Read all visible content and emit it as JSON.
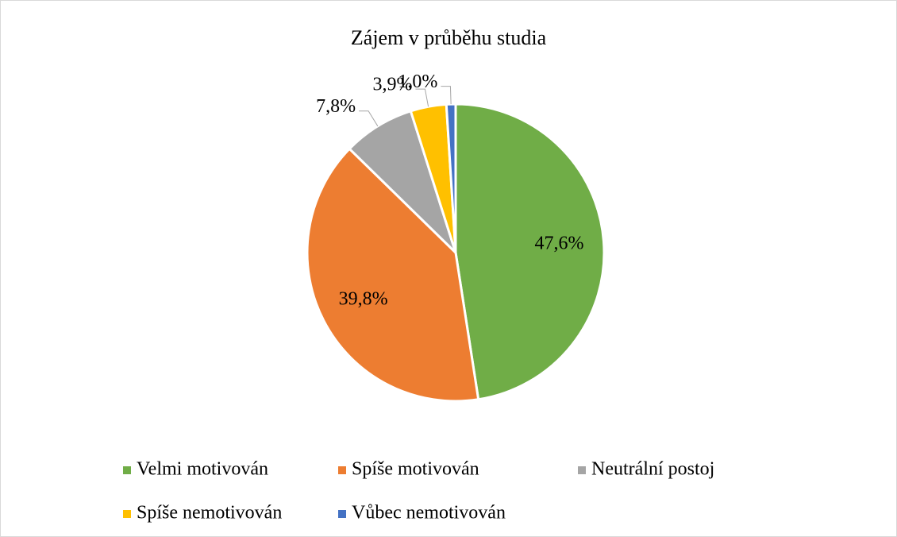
{
  "chart_data": {
    "type": "pie",
    "title": "Zájem v průběhu studia",
    "categories": [
      "Velmi motivován",
      "Spíše motivován",
      "Neutrální postoj",
      "Spíše nemotivován",
      "Vůbec nemotivován"
    ],
    "values": [
      47.6,
      39.8,
      7.8,
      3.9,
      1.0
    ],
    "value_labels": [
      "47,6%",
      "39,8%",
      "7,8%",
      "3,9%",
      "1,0%"
    ],
    "colors": [
      "#70ad47",
      "#ed7d31",
      "#a5a5a5",
      "#ffc000",
      "#4472c4"
    ],
    "legend": "bottom"
  }
}
